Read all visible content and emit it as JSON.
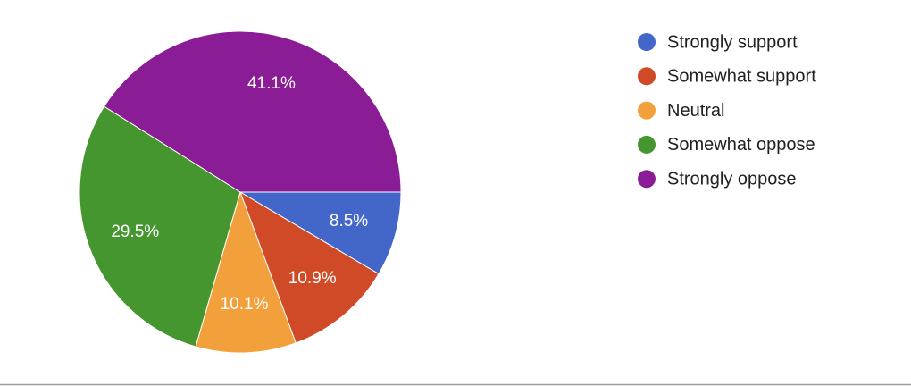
{
  "chart_data": {
    "type": "pie",
    "categories": [
      "Strongly support",
      "Somewhat support",
      "Neutral",
      "Somewhat oppose",
      "Strongly oppose"
    ],
    "values": [
      8.5,
      10.9,
      10.1,
      29.5,
      41.1
    ],
    "value_labels": [
      "8.5%",
      "10.9%",
      "10.1%",
      "29.5%",
      "41.1%"
    ],
    "colors": [
      "#4366c9",
      "#d04a28",
      "#f2a03c",
      "#46962f",
      "#8a1c96"
    ],
    "legend": "right"
  }
}
